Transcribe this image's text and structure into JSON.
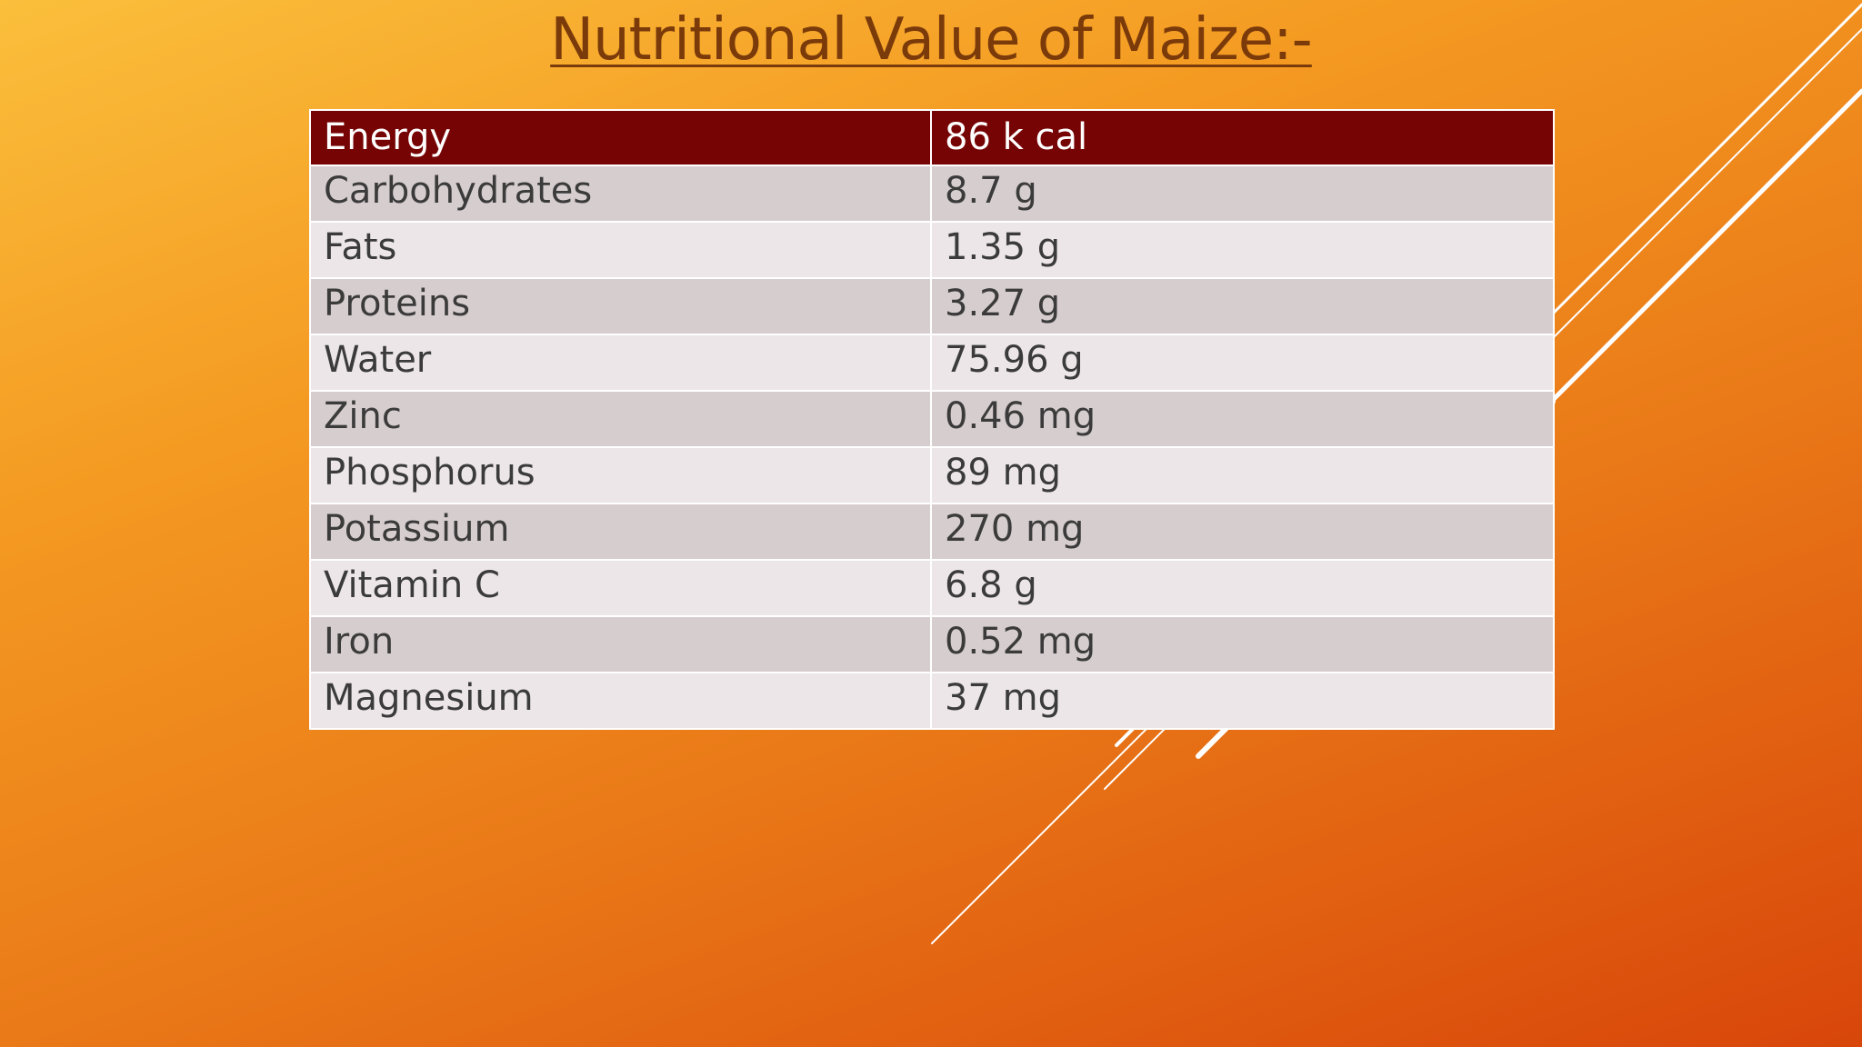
{
  "slide": {
    "title": "Nutritional Value of Maize:-",
    "table": {
      "rows": [
        {
          "nutrient": "Energy",
          "value": "86 k cal"
        },
        {
          "nutrient": "Carbohydrates",
          "value": "8.7 g"
        },
        {
          "nutrient": "Fats",
          "value": "1.35 g"
        },
        {
          "nutrient": "Proteins",
          "value": "3.27 g"
        },
        {
          "nutrient": "Water",
          "value": "75.96 g"
        },
        {
          "nutrient": "Zinc",
          "value": "0.46 mg"
        },
        {
          "nutrient": "Phosphorus",
          "value": "89 mg"
        },
        {
          "nutrient": "Potassium",
          "value": "270 mg"
        },
        {
          "nutrient": "Vitamin C",
          "value": "6.8 g"
        },
        {
          "nutrient": "Iron",
          "value": "0.52 mg"
        },
        {
          "nutrient": "Magnesium",
          "value": "37 mg"
        }
      ]
    }
  },
  "colors": {
    "header_fill": "#760404",
    "row_fill_dark": "#d6cdcf",
    "row_fill_light": "#ece6e8",
    "title_color": "#7a3a0a",
    "decor_lines": "#ffffff"
  }
}
